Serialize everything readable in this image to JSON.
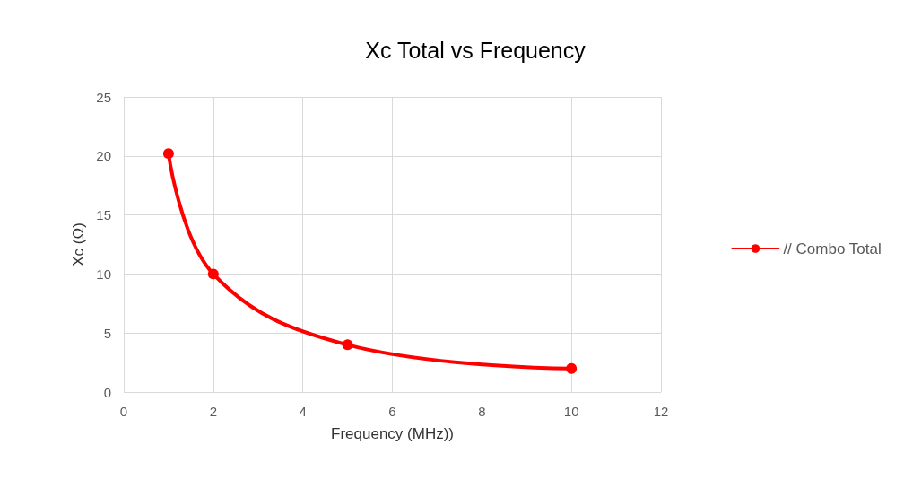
{
  "chart_data": {
    "type": "line",
    "title": "Xc Total vs Frequency",
    "xlabel": "Frequency (MHz))",
    "ylabel": "Xc (Ω)",
    "x": [
      1,
      2,
      5,
      10
    ],
    "series": [
      {
        "name": "// Combo Total",
        "color": "#ff0000",
        "values": [
          20.2,
          10,
          4,
          2
        ]
      }
    ],
    "xlim": [
      0,
      12
    ],
    "xticks": [
      0,
      2,
      4,
      6,
      8,
      10,
      12
    ],
    "ylim": [
      0,
      25
    ],
    "yticks": [
      0,
      5,
      10,
      15,
      20,
      25
    ],
    "grid": true,
    "legend": "right",
    "marker": "circle",
    "line_style": "solid"
  }
}
